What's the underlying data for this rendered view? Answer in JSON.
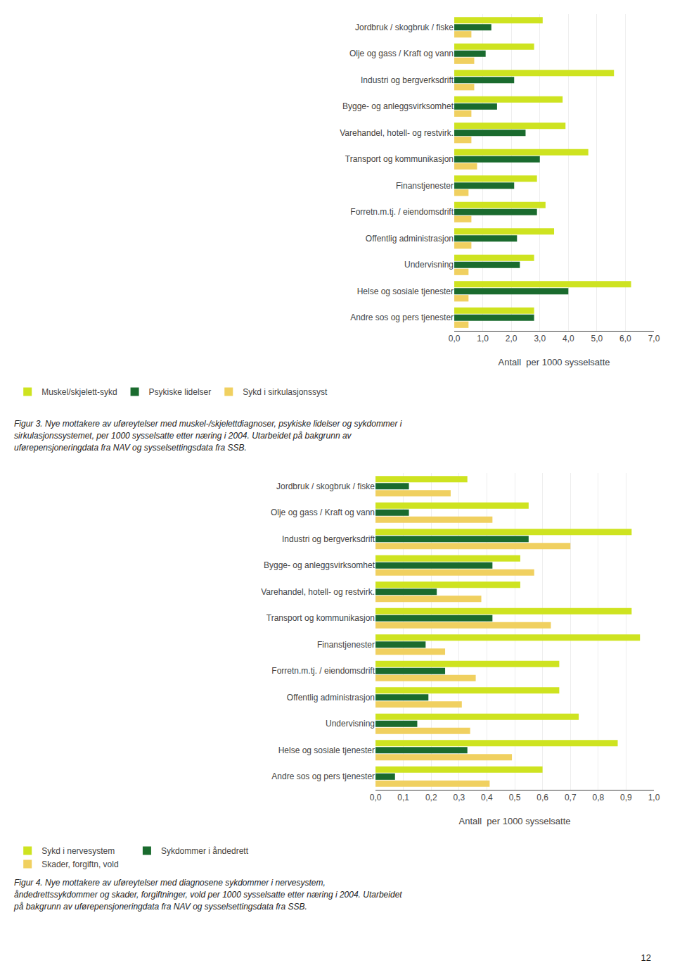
{
  "chart_data": [
    {
      "type": "bar",
      "orientation": "horizontal",
      "categories": [
        "Jordbruk / skogbruk / fiske",
        "Olje og gass / Kraft og vann",
        "Industri og bergverksdrift",
        "Bygge- og anleggsvirksomhet",
        "Varehandel, hotell- og restvirk.",
        "Transport og kommunikasjon",
        "Finanstjenester",
        "Forretn.m.tj. / eiendomsdrift",
        "Offentlig administrasjon",
        "Undervisning",
        "Helse og sosiale tjenester",
        "Andre sos og pers tjenester"
      ],
      "series": [
        {
          "name": "Muskel/skjelett-sykd",
          "color": "#cee320",
          "values": [
            3.1,
            2.8,
            5.6,
            3.8,
            3.9,
            4.7,
            2.9,
            3.2,
            3.5,
            2.8,
            6.2,
            2.8
          ]
        },
        {
          "name": "Psykiske lidelser",
          "color": "#1a6b2e",
          "values": [
            1.3,
            1.1,
            2.1,
            1.5,
            2.5,
            3.0,
            2.1,
            2.9,
            2.2,
            2.3,
            4.0,
            2.8
          ]
        },
        {
          "name": "Sykd i sirkulasjonssyst",
          "color": "#f0d060",
          "values": [
            0.6,
            0.7,
            0.7,
            0.6,
            0.6,
            0.8,
            0.5,
            0.6,
            0.6,
            0.5,
            0.5,
            0.5
          ]
        }
      ],
      "x_label": "Antall  per 1000 sysselsatte",
      "xlim": [
        0,
        7.0
      ],
      "xticks": [
        {
          "value": 0.0,
          "label": "0,0"
        },
        {
          "value": 1.0,
          "label": "1,0"
        },
        {
          "value": 2.0,
          "label": "2,0"
        },
        {
          "value": 3.0,
          "label": "3,0"
        },
        {
          "value": 4.0,
          "label": "4,0"
        },
        {
          "value": 5.0,
          "label": "5,0"
        },
        {
          "value": 6.0,
          "label": "6,0"
        },
        {
          "value": 7.0,
          "label": "7,0"
        }
      ],
      "grid": true,
      "legend": "bottom",
      "annotations": [
        "Figur 3. Nye mottakere av uføreytelser med muskel-/skjelettdiagnoser, psykiske lidelser og sykdommer i",
        "sirkulasjonssystemet, per 1000 sysselsatte etter næring i 2004. Utarbeidet på bakgrunn av",
        "uførepensjoneringdata fra NAV og sysselsettingsdata fra SSB."
      ]
    },
    {
      "type": "bar",
      "orientation": "horizontal",
      "categories": [
        "Jordbruk / skogbruk / fiske",
        "Olje og gass / Kraft og vann",
        "Industri og bergverksdrift",
        "Bygge- og anleggsvirksomhet",
        "Varehandel, hotell- og restvirk.",
        "Transport og kommunikasjon",
        "Finanstjenester",
        "Forretn.m.tj. / eiendomsdrift",
        "Offentlig administrasjon",
        "Undervisning",
        "Helse og sosiale tjenester",
        "Andre sos og pers tjenester"
      ],
      "series": [
        {
          "name": "Sykd i nervesystem",
          "color": "#cee320",
          "values": [
            0.33,
            0.55,
            0.92,
            0.52,
            0.52,
            0.92,
            0.95,
            0.66,
            0.66,
            0.73,
            0.87,
            0.6
          ]
        },
        {
          "name": "Sykdommer i åndedrett",
          "color": "#1a6b2e",
          "values": [
            0.12,
            0.12,
            0.55,
            0.42,
            0.22,
            0.42,
            0.18,
            0.25,
            0.19,
            0.15,
            0.33,
            0.07
          ]
        },
        {
          "name": "Skader, forgiftn, vold",
          "color": "#f0d060",
          "values": [
            0.27,
            0.42,
            0.7,
            0.57,
            0.38,
            0.63,
            0.25,
            0.36,
            0.31,
            0.34,
            0.49,
            0.41
          ]
        }
      ],
      "x_label": "Antall  per 1000 sysselsatte",
      "xlim": [
        0,
        1.0
      ],
      "xticks": [
        {
          "value": 0.0,
          "label": "0,0"
        },
        {
          "value": 0.1,
          "label": "0,1"
        },
        {
          "value": 0.2,
          "label": "0,2"
        },
        {
          "value": 0.3,
          "label": "0,3"
        },
        {
          "value": 0.4,
          "label": "0,4"
        },
        {
          "value": 0.5,
          "label": "0,5"
        },
        {
          "value": 0.6,
          "label": "0,6"
        },
        {
          "value": 0.7,
          "label": "0,7"
        },
        {
          "value": 0.8,
          "label": "0,8"
        },
        {
          "value": 0.9,
          "label": "0,9"
        },
        {
          "value": 1.0,
          "label": "1,0"
        }
      ],
      "grid": true,
      "legend": "bottom",
      "annotations": [
        "Figur 4. Nye mottakere av uføreytelser med diagnosene sykdommer i nervesystem,",
        "åndedrettssykdommer og skader, forgiftninger, vold per 1000 sysselsatte etter næring i 2004. Utarbeidet",
        "på bakgrunn av uførepensjoneringdata fra NAV og sysselsettingsdata fra SSB."
      ]
    }
  ],
  "page_number": "12"
}
